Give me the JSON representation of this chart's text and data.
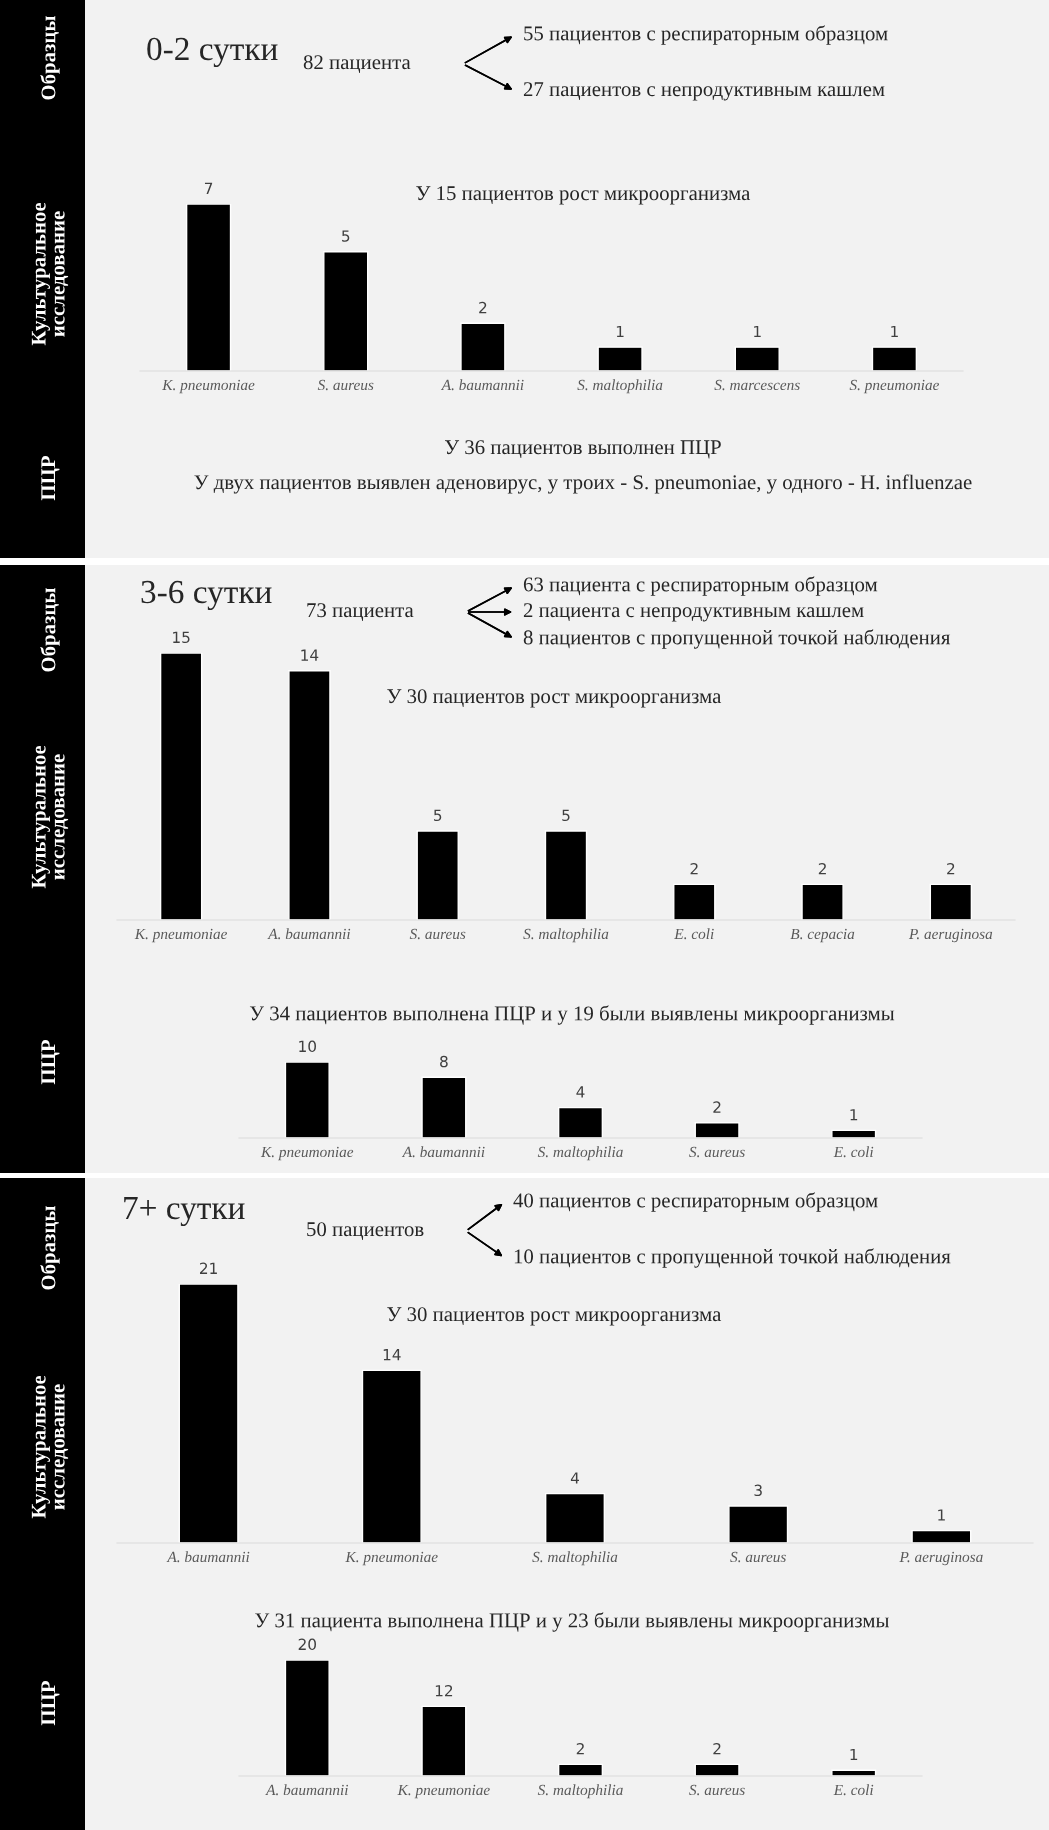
{
  "chart_data": [
    {
      "type": "bar",
      "title": "У 15 пациентов рост микроорганизма",
      "categories": [
        "K. pneumoniae",
        "S. aureus",
        "A. baumannii",
        "S. maltophilia",
        "S. marcescens",
        "S. pneumoniae"
      ],
      "values": [
        7,
        5,
        2,
        1,
        1,
        1
      ],
      "color": "#000000",
      "data_labels": true,
      "annotations": [
        "0-2 сутки",
        "82 пациента",
        "55 пациентов с респираторным образцом",
        "27 пациентов с непродуктивным кашлем",
        "У 36 пациентов выполнен ПЦР",
        "У двух пациентов выявлен аденовирус, у троих - S. pneumoniae, у одного - H. influenzae",
        "Образцы",
        "Культуральное\nисследование",
        "ПЦР"
      ]
    },
    {
      "type": "bar",
      "title": "У 30 пациентов рост микроорганизма",
      "categories": [
        "K. pneumoniae",
        "A. baumannii",
        "S. aureus",
        "S. maltophilia",
        "E. coli",
        "B. cepacia",
        "P. aeruginosa"
      ],
      "values": [
        15,
        14,
        5,
        5,
        2,
        2,
        2
      ],
      "color": "#000000",
      "data_labels": true,
      "annotations": [
        "3-6 сутки",
        "73 пациента",
        "63 пациента с респираторным образцом",
        "2 пациента с непродуктивным кашлем",
        "8 пациентов с пропущенной точкой наблюдения",
        "Образцы",
        "Культуральное\nисследование"
      ]
    },
    {
      "type": "bar",
      "title": "У 34 пациентов выполнена ПЦР и у 19 были выявлены микроорганизмы",
      "categories": [
        "K. pneumoniae",
        "A. baumannii",
        "S. maltophilia",
        "S. aureus",
        "E. coli"
      ],
      "values": [
        10,
        8,
        4,
        2,
        1
      ],
      "color": "#000000",
      "data_labels": true,
      "annotations": [
        "ПЦР"
      ]
    },
    {
      "type": "bar",
      "title": "У 30 пациентов рост микроорганизма",
      "categories": [
        "A. baumannii",
        "K. pneumoniae",
        "S. maltophilia",
        "S. aureus",
        "P. aeruginosa"
      ],
      "values": [
        21,
        14,
        4,
        3,
        1
      ],
      "color": "#000000",
      "data_labels": true,
      "annotations": [
        "7+ сутки",
        "50 пациентов",
        "40 пациентов с респираторным образцом",
        "10 пациентов с пропущенной точкой наблюдения",
        "Образцы",
        "Культуральное\nисследование"
      ]
    },
    {
      "type": "bar",
      "title": "У 31 пациента выполнена ПЦР и у 23 были выявлены микроорганизмы",
      "categories": [
        "A. baumannii",
        "K. pneumoniae",
        "S. maltophilia",
        "S. aureus",
        "E. coli"
      ],
      "values": [
        20,
        12,
        2,
        2,
        1
      ],
      "color": "#000000",
      "data_labels": true,
      "annotations": [
        "ПЦР"
      ]
    }
  ]
}
